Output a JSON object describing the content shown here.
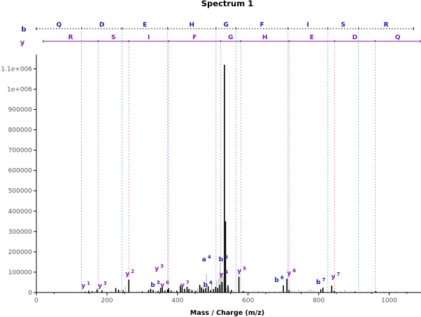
{
  "chart_data": {
    "type": "bar",
    "title": "Spectrum 1",
    "xlabel": "Mass / Charge (m/z)",
    "ylabel": "",
    "xlim": [
      0,
      1090
    ],
    "ylim": [
      0,
      1170000
    ],
    "x_ticks": [
      0,
      200,
      400,
      600,
      800,
      1000
    ],
    "x_tick_labels": [
      "0",
      "200",
      "400",
      "600",
      "800",
      "1000"
    ],
    "y_ticks": [
      0,
      100000,
      200000,
      300000,
      400000,
      500000,
      600000,
      700000,
      800000,
      900000,
      1000000,
      1100000
    ],
    "y_tick_labels": [
      "0",
      "100000",
      "200000",
      "300000",
      "400000",
      "500000",
      "600000",
      "700000",
      "800000",
      "900000",
      "1e+006",
      "1.1e+006"
    ],
    "colors": {
      "matched_peak": "#000000",
      "unmatched_peak": "#bbbbbb",
      "b_ion": "#1a1aa6",
      "y_ion": "#7a1aa6",
      "b_line": "#000000",
      "y_line": "#7a1aa6",
      "b_guide": "#66aadd",
      "y_guide": "#e07ab6",
      "axis": "#000000",
      "tick_text": "#555555"
    },
    "matched_peaks": [
      [
        138,
        4000
      ],
      [
        148,
        9000
      ],
      [
        158,
        6000
      ],
      [
        172,
        16000
      ],
      [
        186,
        11000
      ],
      [
        225,
        22000
      ],
      [
        233,
        14000
      ],
      [
        246,
        10000
      ],
      [
        262,
        63000
      ],
      [
        300,
        6000
      ],
      [
        318,
        12000
      ],
      [
        324,
        18000
      ],
      [
        331,
        13000
      ],
      [
        345,
        8000
      ],
      [
        352,
        22000
      ],
      [
        357,
        30000
      ],
      [
        364,
        9000
      ],
      [
        372,
        14000
      ],
      [
        375,
        21000
      ],
      [
        382,
        10000
      ],
      [
        398,
        9000
      ],
      [
        408,
        35000
      ],
      [
        413,
        26000
      ],
      [
        420,
        18000
      ],
      [
        427,
        28000
      ],
      [
        432,
        17000
      ],
      [
        441,
        12000
      ],
      [
        452,
        8000
      ],
      [
        463,
        38000
      ],
      [
        468,
        25000
      ],
      [
        474,
        16000
      ],
      [
        480,
        22000
      ],
      [
        487,
        30000
      ],
      [
        494,
        12000
      ],
      [
        502,
        17000
      ],
      [
        508,
        28000
      ],
      [
        514,
        22000
      ],
      [
        520,
        38000
      ],
      [
        526,
        52000
      ],
      [
        533,
        1120000
      ],
      [
        536,
        350000
      ],
      [
        543,
        35000
      ],
      [
        553,
        12000
      ],
      [
        574,
        78000
      ],
      [
        586,
        8000
      ],
      [
        700,
        35000
      ],
      [
        710,
        68000
      ],
      [
        716,
        12000
      ],
      [
        806,
        16000
      ],
      [
        812,
        24000
      ],
      [
        837,
        34000
      ],
      [
        844,
        8000
      ],
      [
        903,
        5000
      ],
      [
        962,
        7000
      ]
    ],
    "unmatched_peaks": [
      [
        112,
        3000
      ],
      [
        125,
        5000
      ],
      [
        166,
        6000
      ],
      [
        198,
        4000
      ],
      [
        212,
        8000
      ],
      [
        240,
        12000
      ],
      [
        252,
        30000
      ],
      [
        270,
        6000
      ],
      [
        284,
        9000
      ],
      [
        292,
        7000
      ],
      [
        338,
        10000
      ],
      [
        368,
        18000
      ],
      [
        390,
        12000
      ],
      [
        436,
        22000
      ],
      [
        448,
        14000
      ],
      [
        457,
        20000
      ],
      [
        472,
        30000
      ],
      [
        482,
        92000
      ],
      [
        497,
        45000
      ],
      [
        511,
        60000
      ],
      [
        517,
        70000
      ],
      [
        521,
        140000
      ],
      [
        524,
        95000
      ],
      [
        529,
        80000
      ],
      [
        539,
        24000
      ],
      [
        547,
        18000
      ],
      [
        560,
        9000
      ],
      [
        592,
        6000
      ],
      [
        604,
        5000
      ],
      [
        616,
        8000
      ],
      [
        628,
        10000
      ],
      [
        642,
        6000
      ],
      [
        660,
        5000
      ],
      [
        676,
        6000
      ],
      [
        690,
        7000
      ],
      [
        722,
        9000
      ],
      [
        733,
        6000
      ],
      [
        744,
        12000
      ],
      [
        752,
        8000
      ],
      [
        762,
        7000
      ],
      [
        771,
        13000
      ],
      [
        778,
        16000
      ],
      [
        786,
        10000
      ],
      [
        795,
        6000
      ],
      [
        824,
        6000
      ],
      [
        862,
        5000
      ],
      [
        875,
        14000
      ],
      [
        890,
        6000
      ],
      [
        921,
        4000
      ],
      [
        940,
        4000
      ],
      [
        985,
        6000
      ],
      [
        1000,
        4000
      ],
      [
        1020,
        8000
      ],
      [
        1048,
        7000
      ]
    ],
    "annotations": [
      {
        "series": "y",
        "ion": "1",
        "x": 140,
        "y": 10000
      },
      {
        "series": "y",
        "ion": "3",
        "x": 187,
        "y": 10000
      },
      {
        "series": "y",
        "ion": "2",
        "x": 265,
        "y": 68000
      },
      {
        "series": "b",
        "ion": "3",
        "x": 337,
        "y": 14000
      },
      {
        "series": "y",
        "ion": "6",
        "x": 364,
        "y": 14000
      },
      {
        "series": "y",
        "ion": "3",
        "x": 348,
        "y": 94000
      },
      {
        "series": "y",
        "ion": "7",
        "x": 421,
        "y": 14000
      },
      {
        "series": "b",
        "ion": "4",
        "x": 486,
        "y": 14000
      },
      {
        "series": "a",
        "ion": "4",
        "x": 482,
        "y": 140000
      },
      {
        "series": "b",
        "ion": "5",
        "x": 530,
        "y": 140000
      },
      {
        "series": "y",
        "ion": "4",
        "x": 531,
        "y": 65000
      },
      {
        "series": "y",
        "ion": "5",
        "x": 582,
        "y": 83000
      },
      {
        "series": "b",
        "ion": "6",
        "x": 688,
        "y": 37000
      },
      {
        "series": "y",
        "ion": "6",
        "x": 723,
        "y": 73000
      },
      {
        "series": "b",
        "ion": "7",
        "x": 806,
        "y": 28000
      },
      {
        "series": "y",
        "ion": "7",
        "x": 848,
        "y": 55000
      }
    ],
    "sequence": {
      "b": {
        "label": "b",
        "ladder": [
          0,
          128,
          243,
          372,
          509,
          566,
          713,
          826,
          913,
          1069
        ],
        "residues": [
          "Q",
          "D",
          "E",
          "H",
          "G",
          "F",
          "I",
          "S",
          "R"
        ]
      },
      "y": {
        "label": "y",
        "ladder": [
          19,
          175,
          262,
          375,
          522,
          579,
          716,
          845,
          960,
          1088
        ],
        "residues": [
          "R",
          "S",
          "I",
          "F",
          "G",
          "H",
          "E",
          "D",
          "Q"
        ]
      }
    }
  }
}
